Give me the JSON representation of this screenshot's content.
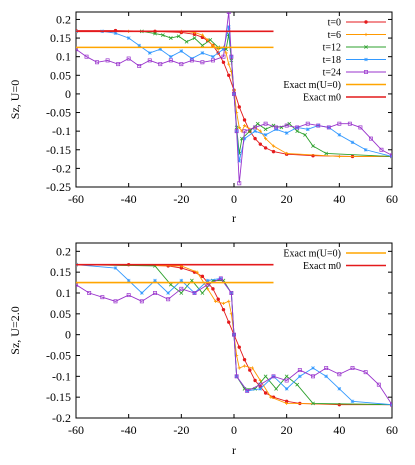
{
  "chart_data": [
    {
      "type": "line",
      "xlabel": "r",
      "ylabel": "Sz, U=0",
      "xlim": [
        -60,
        60
      ],
      "ylim": [
        -0.25,
        0.22
      ],
      "x_ticks": [
        "-60",
        "-40",
        "-20",
        "0",
        "20",
        "40",
        "60"
      ],
      "y_ticks": [
        "-0.25",
        "-0.2",
        "-0.15",
        "-0.1",
        "-0.05",
        "0",
        "0.05",
        "0.1",
        "0.15",
        "0.2"
      ],
      "legend_position": "top-right",
      "series": [
        {
          "name": "t=0",
          "color": "#e41a1c",
          "marker": "circle",
          "x": [
            -60,
            -45,
            -30,
            -20,
            -15,
            -12,
            -10,
            -8,
            -6,
            -4,
            -2,
            0,
            2,
            4,
            6,
            8,
            10,
            12,
            15,
            20,
            30,
            45,
            60
          ],
          "y": [
            0.17,
            0.17,
            0.168,
            0.165,
            0.16,
            0.152,
            0.143,
            0.13,
            0.11,
            0.085,
            0.05,
            0.01,
            -0.035,
            -0.07,
            -0.1,
            -0.12,
            -0.135,
            -0.145,
            -0.155,
            -0.162,
            -0.166,
            -0.168,
            -0.168
          ]
        },
        {
          "name": "t=6",
          "color": "#ff9900",
          "marker": "plus",
          "x": [
            -60,
            -40,
            -20,
            -15,
            -12,
            -10,
            -8,
            -6,
            -4,
            -3,
            -2,
            -1,
            0,
            1,
            2,
            3,
            4,
            6,
            8,
            10,
            12,
            15,
            20,
            40,
            60
          ],
          "y": [
            0.168,
            0.168,
            0.168,
            0.165,
            0.158,
            0.145,
            0.13,
            0.12,
            0.125,
            0.11,
            0.08,
            0.06,
            0.01,
            -0.05,
            -0.09,
            -0.1,
            -0.085,
            -0.095,
            -0.09,
            -0.1,
            -0.12,
            -0.14,
            -0.16,
            -0.168,
            -0.168
          ]
        },
        {
          "name": "t=12",
          "color": "#2ca02c",
          "marker": "cross",
          "x": [
            -60,
            -35,
            -30,
            -27,
            -24,
            -21,
            -18,
            -15,
            -12,
            -9,
            -6,
            -3,
            -2,
            -1,
            0,
            1,
            2,
            3,
            6,
            9,
            12,
            15,
            18,
            21,
            24,
            27,
            30,
            35,
            60
          ],
          "y": [
            0.168,
            0.168,
            0.162,
            0.158,
            0.15,
            0.155,
            0.14,
            0.15,
            0.13,
            0.145,
            0.125,
            0.12,
            0.16,
            0.09,
            0.0,
            -0.09,
            -0.16,
            -0.12,
            -0.1,
            -0.08,
            -0.095,
            -0.085,
            -0.09,
            -0.08,
            -0.1,
            -0.11,
            -0.14,
            -0.16,
            -0.168
          ]
        },
        {
          "name": "t=18",
          "color": "#3399ff",
          "marker": "star",
          "x": [
            -60,
            -50,
            -45,
            -40,
            -36,
            -32,
            -28,
            -24,
            -20,
            -16,
            -12,
            -8,
            -4,
            -2,
            -1,
            0,
            1,
            2,
            4,
            8,
            12,
            16,
            20,
            24,
            28,
            32,
            36,
            40,
            45,
            50,
            60
          ],
          "y": [
            0.168,
            0.168,
            0.163,
            0.15,
            0.13,
            0.11,
            0.12,
            0.1,
            0.115,
            0.095,
            0.11,
            0.1,
            0.12,
            0.18,
            0.1,
            0.0,
            -0.1,
            -0.18,
            -0.12,
            -0.1,
            -0.11,
            -0.095,
            -0.105,
            -0.09,
            -0.095,
            -0.085,
            -0.09,
            -0.11,
            -0.13,
            -0.15,
            -0.168
          ]
        },
        {
          "name": "t=24",
          "color": "#9933cc",
          "marker": "square",
          "x": [
            -60,
            -56,
            -52,
            -48,
            -44,
            -40,
            -36,
            -32,
            -28,
            -24,
            -20,
            -16,
            -12,
            -8,
            -4,
            -2,
            -1,
            0,
            1,
            2,
            4,
            8,
            12,
            16,
            20,
            24,
            28,
            32,
            36,
            40,
            44,
            48,
            52,
            56,
            60
          ],
          "y": [
            0.12,
            0.1,
            0.085,
            0.09,
            0.08,
            0.095,
            0.075,
            0.09,
            0.08,
            0.09,
            0.08,
            0.09,
            0.085,
            0.09,
            0.1,
            0.22,
            0.1,
            0.0,
            -0.1,
            -0.24,
            -0.1,
            -0.09,
            -0.08,
            -0.09,
            -0.085,
            -0.09,
            -0.08,
            -0.085,
            -0.09,
            -0.08,
            -0.08,
            -0.09,
            -0.12,
            -0.15,
            -0.165
          ]
        },
        {
          "name": "Exact m(U=0)",
          "color": "#ffa500",
          "marker": "none",
          "x": [
            -60,
            15
          ],
          "y": [
            0.125,
            0.125
          ]
        },
        {
          "name": "Exact m0",
          "color": "#e41a1c",
          "marker": "none",
          "x": [
            -60,
            15
          ],
          "y": [
            0.168,
            0.168
          ]
        }
      ]
    },
    {
      "type": "line",
      "xlabel": "r",
      "ylabel": "Sz, U=2.0",
      "xlim": [
        -60,
        60
      ],
      "ylim": [
        -0.2,
        0.22
      ],
      "x_ticks": [
        "-60",
        "-40",
        "-20",
        "0",
        "20",
        "40",
        "60"
      ],
      "y_ticks": [
        "-0.2",
        "-0.15",
        "-0.1",
        "-0.05",
        "0",
        "0.05",
        "0.1",
        "0.15",
        "0.2"
      ],
      "legend_position": "top-right",
      "series": [
        {
          "name": "",
          "color": "#e41a1c",
          "marker": "circle",
          "x": [
            -60,
            -40,
            -25,
            -20,
            -15,
            -12,
            -10,
            -8,
            -6,
            -4,
            -2,
            0,
            2,
            4,
            6,
            8,
            10,
            12,
            15,
            20,
            25,
            40,
            60
          ],
          "y": [
            0.168,
            0.168,
            0.165,
            0.16,
            0.15,
            0.14,
            0.125,
            0.11,
            0.085,
            0.06,
            0.03,
            0.0,
            -0.03,
            -0.06,
            -0.085,
            -0.11,
            -0.125,
            -0.14,
            -0.15,
            -0.16,
            -0.165,
            -0.168,
            -0.168
          ]
        },
        {
          "name": "",
          "color": "#ff9900",
          "marker": "plus",
          "x": [
            -60,
            -20,
            -14,
            -10,
            -7,
            -4,
            -2,
            -1,
            0,
            1,
            2,
            4,
            7,
            10,
            14,
            20,
            60
          ],
          "y": [
            0.168,
            0.165,
            0.15,
            0.11,
            0.08,
            0.075,
            0.08,
            0.05,
            0.0,
            -0.05,
            -0.08,
            -0.075,
            -0.08,
            -0.11,
            -0.15,
            -0.165,
            -0.168
          ]
        },
        {
          "name": "",
          "color": "#2ca02c",
          "marker": "cross",
          "x": [
            -60,
            -30,
            -24,
            -20,
            -16,
            -12,
            -8,
            -4,
            -1,
            0,
            1,
            4,
            8,
            12,
            16,
            20,
            24,
            30,
            60
          ],
          "y": [
            0.168,
            0.165,
            0.12,
            0.1,
            0.13,
            0.1,
            0.13,
            0.13,
            0.1,
            0.0,
            -0.1,
            -0.13,
            -0.13,
            -0.1,
            -0.13,
            -0.1,
            -0.12,
            -0.165,
            -0.168
          ]
        },
        {
          "name": "",
          "color": "#3399ff",
          "marker": "star",
          "x": [
            -60,
            -45,
            -40,
            -35,
            -30,
            -25,
            -20,
            -15,
            -10,
            -5,
            -1,
            0,
            1,
            5,
            10,
            15,
            20,
            25,
            30,
            35,
            40,
            45,
            60
          ],
          "y": [
            0.168,
            0.16,
            0.13,
            0.1,
            0.13,
            0.1,
            0.13,
            0.1,
            0.13,
            0.135,
            0.1,
            0.0,
            -0.1,
            -0.135,
            -0.13,
            -0.1,
            -0.13,
            -0.1,
            -0.08,
            -0.1,
            -0.13,
            -0.16,
            -0.168
          ]
        },
        {
          "name": "",
          "color": "#9933cc",
          "marker": "square",
          "x": [
            -60,
            -55,
            -50,
            -45,
            -40,
            -35,
            -30,
            -25,
            -20,
            -15,
            -10,
            -5,
            -1,
            0,
            1,
            5,
            10,
            15,
            20,
            25,
            30,
            35,
            40,
            45,
            50,
            55,
            60
          ],
          "y": [
            0.12,
            0.1,
            0.09,
            0.08,
            0.095,
            0.08,
            0.1,
            0.085,
            0.11,
            0.1,
            0.12,
            0.135,
            0.1,
            0.0,
            -0.1,
            -0.135,
            -0.12,
            -0.1,
            -0.11,
            -0.085,
            -0.1,
            -0.08,
            -0.095,
            -0.08,
            -0.09,
            -0.12,
            -0.168
          ]
        },
        {
          "name": "Exact m(U=0)",
          "color": "#ffa500",
          "marker": "none",
          "x": [
            -60,
            15
          ],
          "y": [
            0.125,
            0.125
          ]
        },
        {
          "name": "Exact m0",
          "color": "#e41a1c",
          "marker": "none",
          "x": [
            -60,
            15
          ],
          "y": [
            0.168,
            0.168
          ]
        }
      ]
    }
  ]
}
